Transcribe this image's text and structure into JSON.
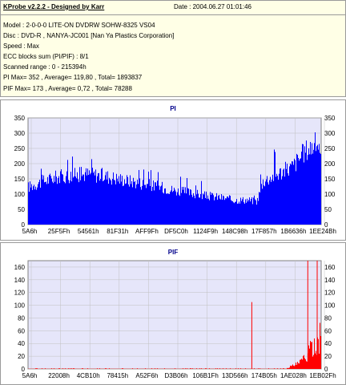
{
  "header": {
    "app_title": "KProbe v2.2.2 - Designed by Karr",
    "date": "Date : 2004.06.27 01:01:46"
  },
  "info_lines": [
    "Model : 2-0-0-0 LITE-ON DVDRW SOHW-8325  VS04",
    "Disc : DVD-R , NANYA-JC001  [Nan Ya Plastics Corporation]",
    "Speed : Max",
    "ECC blocks sum (PI/PIF) : 8/1",
    "Scanned range : 0 - 215394h",
    "PI Max= 352 , Average= 119,80 , Total= 1893837",
    "PIF Max= 173 , Average= 0,72 , Total= 78288"
  ],
  "colors": {
    "pi_fill": "#0000ff",
    "pif_fill": "#ff0000",
    "plot_bg": "#e6e6fa",
    "grid": "#c0c0c0",
    "info_bg": "#ffffe6",
    "title": "#00008b"
  },
  "chart_data": [
    {
      "type": "area",
      "title": "PI",
      "yticks": [
        "0",
        "50",
        "100",
        "150",
        "200",
        "250",
        "300",
        "350"
      ],
      "ylim": [
        0,
        350
      ],
      "xticks": [
        "5A6h",
        "25F5Fh",
        "54561h",
        "81F31h",
        "AFF9Fh",
        "DF5C0h",
        "1124F9h",
        "148C98h",
        "17F857h",
        "1B6636h",
        "1EE24Bh"
      ],
      "xlim_hex": [
        "0h",
        "215394h"
      ],
      "grid": true,
      "profile": [
        {
          "pos": 0.0,
          "value": 130
        },
        {
          "pos": 0.05,
          "value": 150
        },
        {
          "pos": 0.1,
          "value": 165
        },
        {
          "pos": 0.15,
          "value": 170
        },
        {
          "pos": 0.2,
          "value": 175
        },
        {
          "pos": 0.25,
          "value": 170
        },
        {
          "pos": 0.3,
          "value": 160
        },
        {
          "pos": 0.35,
          "value": 150
        },
        {
          "pos": 0.4,
          "value": 140
        },
        {
          "pos": 0.45,
          "value": 130
        },
        {
          "pos": 0.5,
          "value": 118
        },
        {
          "pos": 0.55,
          "value": 110
        },
        {
          "pos": 0.6,
          "value": 100
        },
        {
          "pos": 0.65,
          "value": 95
        },
        {
          "pos": 0.7,
          "value": 85
        },
        {
          "pos": 0.75,
          "value": 85
        },
        {
          "pos": 0.78,
          "value": 80
        },
        {
          "pos": 0.8,
          "value": 150
        },
        {
          "pos": 0.85,
          "value": 175
        },
        {
          "pos": 0.9,
          "value": 200
        },
        {
          "pos": 0.95,
          "value": 260
        },
        {
          "pos": 1.0,
          "value": 290
        }
      ],
      "max_value": 352
    },
    {
      "type": "bar",
      "title": "PIF",
      "yticks": [
        "0",
        "20",
        "40",
        "60",
        "80",
        "100",
        "120",
        "140",
        "160"
      ],
      "ylim": [
        0,
        170
      ],
      "xticks": [
        "5A6h",
        "22008h",
        "4CB10h",
        "78415h",
        "A52F6h",
        "D3B06h",
        "106B1Fh",
        "13D566h",
        "174B05h",
        "1AE028h",
        "1EB02Fh"
      ],
      "xlim_hex": [
        "0h",
        "215394h"
      ],
      "grid": true,
      "spikes": [
        {
          "pos": 0.762,
          "value": 105
        },
        {
          "pos": 0.953,
          "value": 173
        },
        {
          "pos": 0.985,
          "value": 170
        }
      ],
      "tail_profile": [
        {
          "pos": 0.88,
          "value": 2
        },
        {
          "pos": 0.92,
          "value": 10
        },
        {
          "pos": 0.95,
          "value": 25
        },
        {
          "pos": 0.97,
          "value": 45
        },
        {
          "pos": 1.0,
          "value": 65
        }
      ],
      "max_value": 173
    }
  ]
}
